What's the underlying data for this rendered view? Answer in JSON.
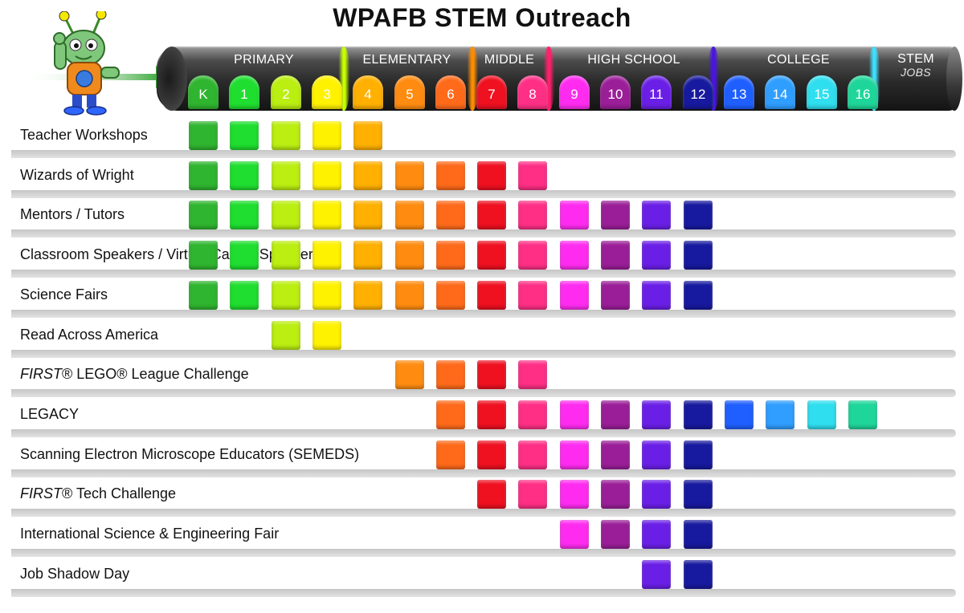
{
  "title": "WPAFB STEM Outreach",
  "mascot_icon": "alien-mascot-icon",
  "groups": [
    {
      "label": "PRIMARY",
      "color": "#c6ff00"
    },
    {
      "label": "ELEMENTARY",
      "color": "#ff8c00"
    },
    {
      "label": "MIDDLE",
      "color": "#ff1f6b"
    },
    {
      "label": "HIGH SCHOOL",
      "color": "#4a15e0"
    },
    {
      "label": "COLLEGE",
      "color": "#3de0ff"
    },
    {
      "label": "STEM",
      "sublabel": "JOBS",
      "color": "#3de0ff"
    }
  ],
  "grades": [
    {
      "label": "K",
      "color": "#2fb52f"
    },
    {
      "label": "1",
      "color": "#1fde2f"
    },
    {
      "label": "2",
      "color": "#bbee11"
    },
    {
      "label": "3",
      "color": "#fff200"
    },
    {
      "label": "4",
      "color": "#ffb000"
    },
    {
      "label": "5",
      "color": "#ff8c10"
    },
    {
      "label": "6",
      "color": "#ff6a1a"
    },
    {
      "label": "7",
      "color": "#ef1020"
    },
    {
      "label": "8",
      "color": "#ff2f86"
    },
    {
      "label": "9",
      "color": "#ff2cf0"
    },
    {
      "label": "10",
      "color": "#9a1e98"
    },
    {
      "label": "11",
      "color": "#6a1fe6"
    },
    {
      "label": "12",
      "color": "#17199e"
    },
    {
      "label": "13",
      "color": "#1f5fff"
    },
    {
      "label": "14",
      "color": "#2f9eff"
    },
    {
      "label": "15",
      "color": "#2fdff0"
    },
    {
      "label": "16",
      "color": "#1fd69a"
    }
  ],
  "programs": [
    {
      "label": "Teacher Workshops",
      "grades": [
        0,
        1,
        2,
        3,
        4
      ]
    },
    {
      "label": "Wizards of Wright",
      "grades": [
        0,
        1,
        2,
        3,
        4,
        5,
        6,
        7,
        8
      ]
    },
    {
      "label": "Mentors / Tutors",
      "grades": [
        0,
        1,
        2,
        3,
        4,
        5,
        6,
        7,
        8,
        9,
        10,
        11,
        12
      ]
    },
    {
      "label": "Classroom Speakers / Virtual Career Speakers",
      "grades": [
        0,
        1,
        2,
        3,
        4,
        5,
        6,
        7,
        8,
        9,
        10,
        11,
        12
      ]
    },
    {
      "label": "Science Fairs",
      "grades": [
        0,
        1,
        2,
        3,
        4,
        5,
        6,
        7,
        8,
        9,
        10,
        11,
        12
      ]
    },
    {
      "label": "Read Across America",
      "grades": [
        2,
        3
      ]
    },
    {
      "label_italic": "FIRST",
      "label": "® LEGO® League Challenge",
      "grades": [
        5,
        6,
        7,
        8
      ]
    },
    {
      "label": "LEGACY",
      "grades": [
        6,
        7,
        8,
        9,
        10,
        11,
        12,
        13,
        14,
        15,
        16
      ]
    },
    {
      "label": "Scanning Electron Microscope Educators (SEMEDS)",
      "grades": [
        6,
        7,
        8,
        9,
        10,
        11,
        12
      ]
    },
    {
      "label_italic": "FIRST",
      "label": "® Tech Challenge",
      "grades": [
        7,
        8,
        9,
        10,
        11,
        12
      ]
    },
    {
      "label": "International Science & Engineering Fair",
      "grades": [
        9,
        10,
        11,
        12
      ]
    },
    {
      "label": "Job Shadow Day",
      "grades": [
        11,
        12
      ]
    }
  ]
}
